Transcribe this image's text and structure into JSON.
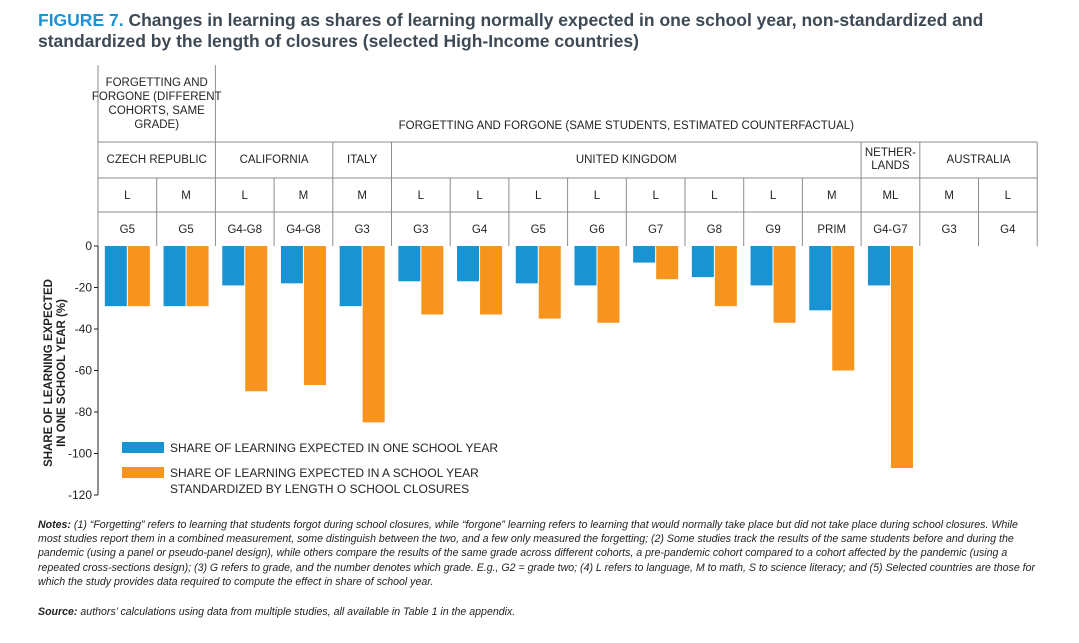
{
  "title": {
    "figure_label": "FIGURE 7.",
    "text": "Changes in learning as shares of learning normally expected in one school year, non-standardized and standardized by the length of closures (selected High-Income countries)"
  },
  "header": {
    "method_groups": [
      {
        "label_lines": [
          "FORGETTING AND",
          "FORGONE (DIFFERENT",
          "COHORTS, SAME",
          "GRADE)"
        ]
      },
      {
        "label_lines": [
          "FORGETTING AND FORGONE (SAME STUDENTS, ESTIMATED COUNTERFACTUAL)"
        ]
      }
    ],
    "countries": [
      {
        "label_lines": [
          "CZECH REPUBLIC"
        ]
      },
      {
        "label_lines": [
          "CALIFORNIA"
        ]
      },
      {
        "label_lines": [
          "ITALY"
        ]
      },
      {
        "label_lines": [
          "UNITED KINGDOM"
        ]
      },
      {
        "label_lines": [
          "NETHER-",
          "LANDS"
        ]
      },
      {
        "label_lines": [
          "AUSTRALIA"
        ]
      }
    ]
  },
  "chart_data": {
    "type": "bar",
    "ylabel": "SHARE OF LEARNING EXPECTED IN ONE SCHOOL YEAR (%)",
    "ylim": [
      -120,
      0
    ],
    "yticks": [
      0,
      -20,
      -40,
      -60,
      -80,
      -100,
      -120
    ],
    "categories": [
      {
        "country": "CZECH REPUBLIC",
        "subject": "L",
        "grade": "G5"
      },
      {
        "country": "CZECH REPUBLIC",
        "subject": "M",
        "grade": "G5"
      },
      {
        "country": "CALIFORNIA",
        "subject": "L",
        "grade": "G4-G8"
      },
      {
        "country": "CALIFORNIA",
        "subject": "M",
        "grade": "G4-G8"
      },
      {
        "country": "ITALY",
        "subject": "M",
        "grade": "G3"
      },
      {
        "country": "UNITED KINGDOM",
        "subject": "L",
        "grade": "G3"
      },
      {
        "country": "UNITED KINGDOM",
        "subject": "L",
        "grade": "G4"
      },
      {
        "country": "UNITED KINGDOM",
        "subject": "L",
        "grade": "G5"
      },
      {
        "country": "UNITED KINGDOM",
        "subject": "L",
        "grade": "G6"
      },
      {
        "country": "UNITED KINGDOM",
        "subject": "L",
        "grade": "G7"
      },
      {
        "country": "UNITED KINGDOM",
        "subject": "L",
        "grade": "G8"
      },
      {
        "country": "UNITED KINGDOM",
        "subject": "L",
        "grade": "G9"
      },
      {
        "country": "UNITED KINGDOM",
        "subject": "M",
        "grade": "PRIM"
      },
      {
        "country": "NETHERLANDS",
        "subject": "ML",
        "grade": "G4-G7"
      },
      {
        "country": "AUSTRALIA",
        "subject": "M",
        "grade": "G3"
      },
      {
        "country": "AUSTRALIA",
        "subject": "L",
        "grade": "G4"
      }
    ],
    "series": [
      {
        "name": "SHARE OF LEARNING EXPECTED IN ONE SCHOOL YEAR",
        "color": "#1a93d3",
        "values": [
          -29,
          -29,
          -19,
          -18,
          -29,
          -17,
          -17,
          -18,
          -19,
          -8,
          -15,
          -19,
          -31,
          -19,
          null,
          null
        ]
      },
      {
        "name": "SHARE OF LEARNING EXPECTED IN A SCHOOL YEAR STANDARDIZED BY LENGTH O SCHOOL CLOSURES",
        "color": "#f7941d",
        "values": [
          -29,
          -29,
          -70,
          -67,
          -85,
          -33,
          -33,
          -35,
          -37,
          -16,
          -29,
          -37,
          -60,
          -107,
          null,
          null
        ]
      }
    ],
    "legend_placement": "bottom-left",
    "grid": false
  },
  "notes": {
    "label": "Notes:",
    "text": "(1) “Forgetting” refers to learning that students forgot during school closures, while “forgone” learning refers to learning that would normally take place but did not take place during school closures. While most studies report them in a combined measurement, some distinguish between the two, and a few only measured the forgetting; (2) Some studies track the results of the same students before and during the pandemic (using a panel or pseudo-panel design), while others compare the results of the same grade across different cohorts, a pre-pandemic cohort compared to a cohort affected by the pandemic (using a repeated cross-sections design); (3) G refers to grade, and the number denotes which grade. E.g., G2 = grade two; (4) L refers to language, M to math, S to science literacy; and (5) Selected countries are those for which the study provides data required to compute the effect in share of school year."
  },
  "source": {
    "label": "Source:",
    "text": "authors’ calculations using data from multiple studies, all available in Table 1 in the appendix."
  }
}
